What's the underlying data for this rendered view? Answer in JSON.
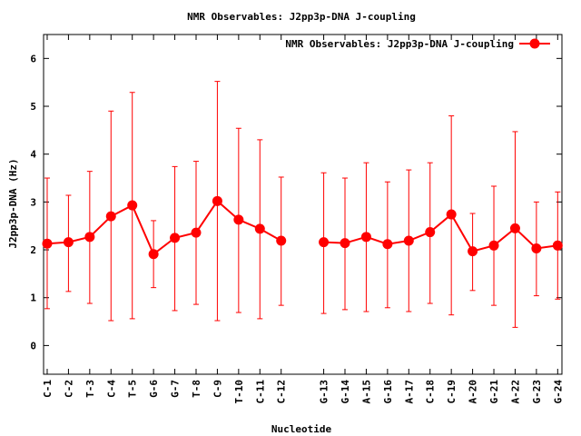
{
  "chart_data": {
    "type": "line",
    "title": "NMR Observables: J2pp3p-DNA J-coupling",
    "xlabel": "Nucleotide",
    "ylabel": "J2pp3p-DNA (Hz)",
    "ylim": [
      -0.6,
      6.5
    ],
    "xlim": [
      0.83,
      25.2
    ],
    "yticks": [
      0,
      1,
      2,
      3,
      4,
      5,
      6
    ],
    "grid": false,
    "legend": {
      "position": "top-right",
      "label": "NMR Observables: J2pp3p-DNA J-coupling"
    },
    "color": "#ff0000",
    "series": [
      {
        "name": "NMR Observables: J2pp3p-DNA J-coupling",
        "points": [
          {
            "label": "C-1",
            "x": 1,
            "y": 2.13,
            "ylow": 0.77,
            "yhigh": 3.5
          },
          {
            "label": "C-2",
            "x": 2,
            "y": 2.16,
            "ylow": 1.13,
            "yhigh": 3.14
          },
          {
            "label": "T-3",
            "x": 3,
            "y": 2.27,
            "ylow": 0.88,
            "yhigh": 3.64
          },
          {
            "label": "C-4",
            "x": 4,
            "y": 2.7,
            "ylow": 0.52,
            "yhigh": 4.9
          },
          {
            "label": "T-5",
            "x": 5,
            "y": 2.93,
            "ylow": 0.56,
            "yhigh": 5.29
          },
          {
            "label": "G-6",
            "x": 6,
            "y": 1.91,
            "ylow": 1.21,
            "yhigh": 2.61
          },
          {
            "label": "G-7",
            "x": 7,
            "y": 2.25,
            "ylow": 0.73,
            "yhigh": 3.74
          },
          {
            "label": "T-8",
            "x": 8,
            "y": 2.36,
            "ylow": 0.86,
            "yhigh": 3.85
          },
          {
            "label": "C-9",
            "x": 9,
            "y": 3.02,
            "ylow": 0.52,
            "yhigh": 5.52
          },
          {
            "label": "T-10",
            "x": 10,
            "y": 2.63,
            "ylow": 0.69,
            "yhigh": 4.54
          },
          {
            "label": "C-11",
            "x": 11,
            "y": 2.44,
            "ylow": 0.56,
            "yhigh": 4.3
          },
          {
            "label": "C-12",
            "x": 12,
            "y": 2.19,
            "ylow": 0.84,
            "yhigh": 3.52
          },
          {
            "label": "G-13",
            "x": 14,
            "y": 2.16,
            "ylow": 0.67,
            "yhigh": 3.61
          },
          {
            "label": "G-14",
            "x": 15,
            "y": 2.14,
            "ylow": 0.75,
            "yhigh": 3.5
          },
          {
            "label": "A-15",
            "x": 16,
            "y": 2.27,
            "ylow": 0.71,
            "yhigh": 3.82
          },
          {
            "label": "G-16",
            "x": 17,
            "y": 2.12,
            "ylow": 0.79,
            "yhigh": 3.42
          },
          {
            "label": "A-17",
            "x": 18,
            "y": 2.19,
            "ylow": 0.71,
            "yhigh": 3.67
          },
          {
            "label": "C-18",
            "x": 19,
            "y": 2.37,
            "ylow": 0.88,
            "yhigh": 3.82
          },
          {
            "label": "C-19",
            "x": 20,
            "y": 2.74,
            "ylow": 0.64,
            "yhigh": 4.8
          },
          {
            "label": "A-20",
            "x": 21,
            "y": 1.97,
            "ylow": 1.15,
            "yhigh": 2.76
          },
          {
            "label": "G-21",
            "x": 22,
            "y": 2.09,
            "ylow": 0.84,
            "yhigh": 3.33
          },
          {
            "label": "A-22",
            "x": 23,
            "y": 2.45,
            "ylow": 0.38,
            "yhigh": 4.47
          },
          {
            "label": "G-23",
            "x": 24,
            "y": 2.03,
            "ylow": 1.04,
            "yhigh": 3.0
          },
          {
            "label": "G-24",
            "x": 25,
            "y": 2.09,
            "ylow": 0.97,
            "yhigh": 3.21
          }
        ]
      }
    ]
  }
}
